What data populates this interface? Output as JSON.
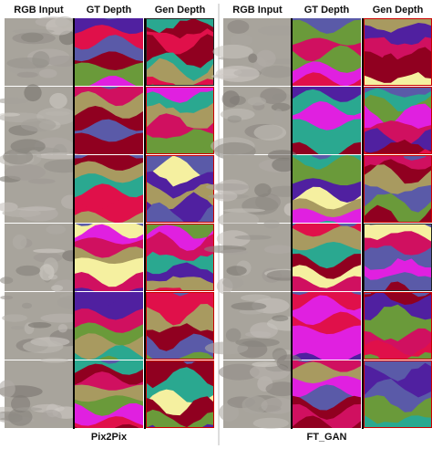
{
  "panels": [
    {
      "headers": [
        "RGB Input",
        "GT Depth",
        "Gen Depth"
      ],
      "caption": "Pix2Pix"
    },
    {
      "headers": [
        "RGB Input",
        "GT Depth",
        "Gen Depth"
      ],
      "caption": "FT_GAN"
    }
  ]
}
